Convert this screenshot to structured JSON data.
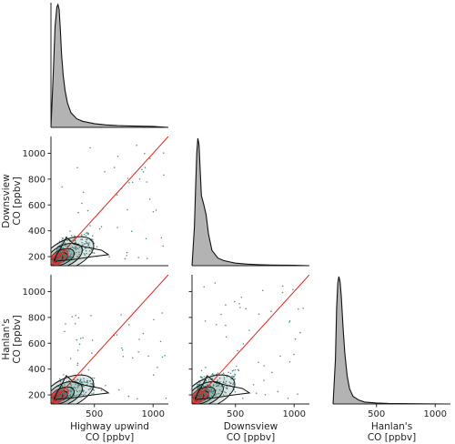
{
  "chart_data": {
    "type": "pairplot",
    "grid": false,
    "axis_range": [
      130,
      1130
    ],
    "ticks": [
      200,
      400,
      600,
      800,
      1000
    ],
    "xticks": [
      500,
      1000
    ],
    "variables": [
      {
        "key": "highway",
        "x_label": [
          "Highway upwind",
          "CO [ppbv]"
        ],
        "y_label": []
      },
      {
        "key": "downsview",
        "x_label": [
          "Downsview",
          "CO [ppbv]"
        ],
        "y_label": [
          "Downsview",
          "CO [ppbv]"
        ]
      },
      {
        "key": "hanlans",
        "x_label": [
          "Hanlan's",
          "CO [ppbv]"
        ],
        "y_label": [
          "Hanlan's",
          "CO [ppbv]"
        ]
      }
    ],
    "diagonal": [
      {
        "variable": "highway",
        "type": "kde",
        "x": [
          130,
          150,
          165,
          180,
          190,
          200,
          210,
          220,
          235,
          250,
          270,
          300,
          350,
          400,
          500,
          600,
          700,
          800,
          900,
          1000,
          1130
        ],
        "density": [
          0.0,
          0.45,
          0.82,
          0.98,
          1.0,
          0.96,
          0.8,
          0.6,
          0.42,
          0.3,
          0.2,
          0.12,
          0.07,
          0.05,
          0.03,
          0.02,
          0.015,
          0.012,
          0.01,
          0.008,
          0.0
        ]
      },
      {
        "variable": "downsview",
        "type": "kde",
        "x": [
          130,
          150,
          160,
          170,
          180,
          190,
          200,
          210,
          230,
          250,
          270,
          300,
          350,
          400,
          500,
          600,
          700,
          800,
          1000,
          1130
        ],
        "density": [
          0.0,
          0.3,
          0.6,
          0.88,
          1.0,
          0.95,
          0.75,
          0.55,
          0.48,
          0.4,
          0.25,
          0.12,
          0.06,
          0.04,
          0.02,
          0.012,
          0.008,
          0.005,
          0.003,
          0.0
        ]
      },
      {
        "variable": "hanlans",
        "type": "kde",
        "x": [
          130,
          150,
          160,
          170,
          180,
          190,
          200,
          215,
          230,
          250,
          270,
          300,
          350,
          400,
          500,
          600,
          800,
          1000,
          1130
        ],
        "density": [
          0.0,
          0.35,
          0.75,
          0.95,
          1.0,
          0.96,
          0.85,
          0.6,
          0.4,
          0.22,
          0.12,
          0.06,
          0.03,
          0.015,
          0.008,
          0.004,
          0.002,
          0.001,
          0.0
        ]
      }
    ],
    "scatter_panels": [
      {
        "x": "highway",
        "y": "downsview",
        "one_to_one_line": true,
        "kde_contours": true
      },
      {
        "x": "highway",
        "y": "hanlans",
        "one_to_one_line": true,
        "kde_contours": true
      },
      {
        "x": "downsview",
        "y": "hanlans",
        "one_to_one_line": true,
        "kde_contours": true
      }
    ],
    "colors": {
      "kde_fill": "#b3b3b3",
      "kde_line": "#111111",
      "scatter": "#4a8a84",
      "contour_fill": "#3c6e64",
      "contour_line": "#111111",
      "one_to_one": "#e0241b",
      "center_line": "#d23c3c"
    }
  }
}
